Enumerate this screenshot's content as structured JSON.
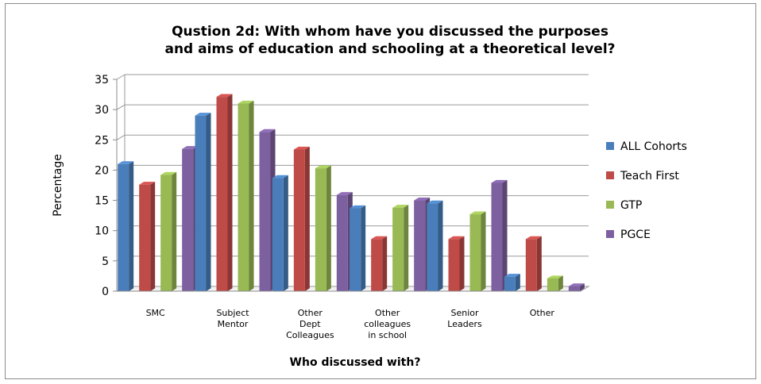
{
  "chart_data": {
    "type": "bar",
    "title_lines": [
      "Qustion 2d: With whom have you discussed the purposes",
      "and aims of education and schooling at a theoretical level?"
    ],
    "xlabel": "Who discussed with?",
    "ylabel": "Percentage",
    "ylim": [
      0,
      35
    ],
    "yticks": [
      0,
      5,
      10,
      15,
      20,
      25,
      30,
      35
    ],
    "grid": true,
    "legend_position": "right",
    "categories": [
      [
        "SMC"
      ],
      [
        "Subject",
        "Mentor"
      ],
      [
        "Other",
        "Dept",
        "Colleagues"
      ],
      [
        "Other",
        "colleagues",
        "in school"
      ],
      [
        "Senior",
        "Leaders"
      ],
      [
        "Other"
      ]
    ],
    "series": [
      {
        "name": "ALL Cohorts",
        "color": "#4a7ebb",
        "values": [
          21,
          29,
          18.7,
          13.7,
          14.5,
          2.4
        ]
      },
      {
        "name": "Teach First",
        "color": "#be4b48",
        "values": [
          17.6,
          32.1,
          23.4,
          8.6,
          8.6,
          8.6
        ]
      },
      {
        "name": "GTP",
        "color": "#98b954",
        "values": [
          19.2,
          31,
          20.3,
          13.8,
          12.7,
          2.1
        ]
      },
      {
        "name": "PGCE",
        "color": "#7d60a0",
        "values": [
          23.5,
          26.3,
          15.9,
          15,
          17.9,
          0.8
        ]
      }
    ]
  }
}
